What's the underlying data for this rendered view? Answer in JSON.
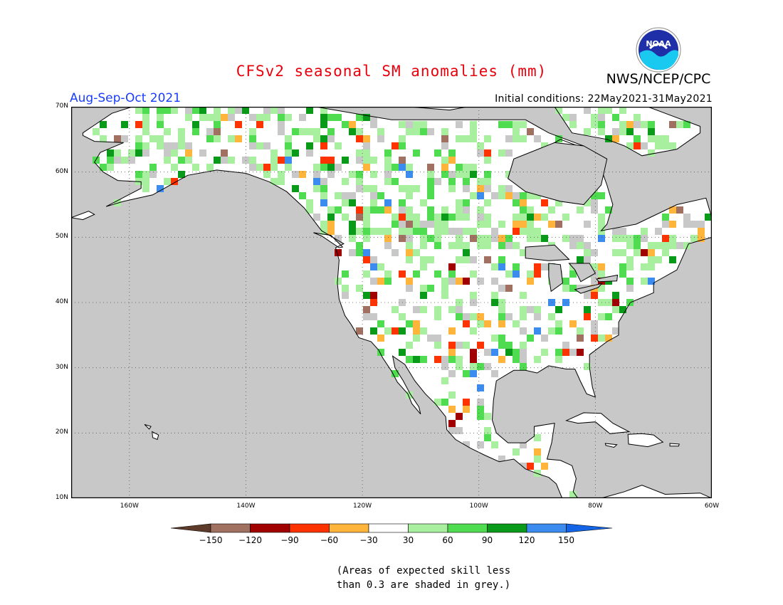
{
  "header": {
    "title": "CFSv2 seasonal SM anomalies (mm)",
    "agency": "NWS/NCEP/CPC",
    "logo_text": "NOAA",
    "season": "Aug-Sep-Oct 2021",
    "initial_conditions": "Initial conditions: 22May2021-31May2021"
  },
  "map": {
    "lat_labels": [
      "70N",
      "60N",
      "50N",
      "40N",
      "30N",
      "20N",
      "10N"
    ],
    "lon_labels": [
      "160W",
      "140W",
      "120W",
      "100W",
      "80W",
      "60W"
    ],
    "lat_range": [
      10,
      70
    ],
    "lon_range": [
      -170,
      -60
    ],
    "grid": true,
    "colors": {
      "ocean": "#c8c8c8",
      "land_neutral": "#ffffff",
      "low_skill": "#c8c8c8"
    }
  },
  "legend": {
    "labels": [
      "-150",
      "-120",
      "-90",
      "-60",
      "-30",
      "30",
      "60",
      "90",
      "120",
      "150"
    ],
    "bins": [
      {
        "color": "#5e3a2a"
      },
      {
        "color": "#a07060"
      },
      {
        "color": "#a00000"
      },
      {
        "color": "#ff3300"
      },
      {
        "color": "#ffb43c"
      },
      {
        "color": "#ffffff"
      },
      {
        "color": "#a8f0a0"
      },
      {
        "color": "#50dc50"
      },
      {
        "color": "#0a9a1a"
      },
      {
        "color": "#3c8cf0"
      },
      {
        "color": "#1464e6"
      }
    ]
  },
  "note": {
    "line1": "(Areas of expected skill less",
    "line2": "than 0.3 are shaded in grey.)"
  }
}
